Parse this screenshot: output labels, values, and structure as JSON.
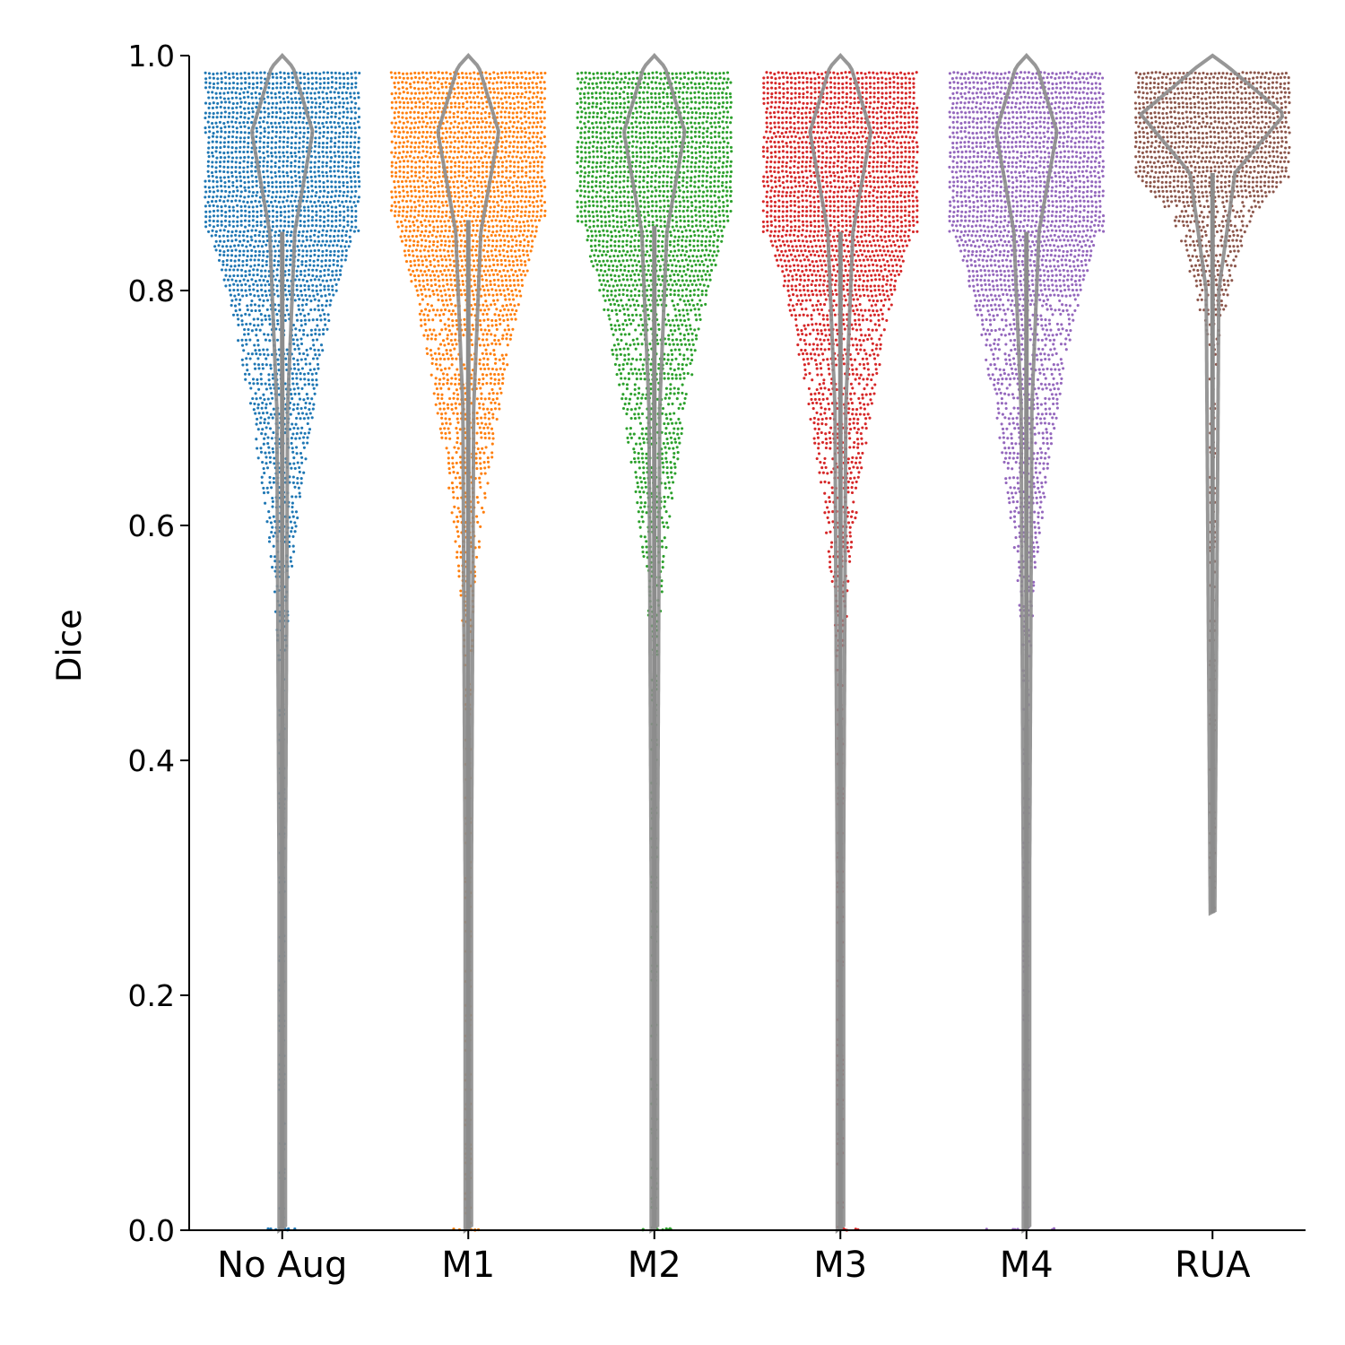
{
  "chart_data": {
    "type": "violin-swarm",
    "title": "",
    "xlabel": "",
    "ylabel": "Dice",
    "ylim": [
      0,
      1.0
    ],
    "yticks": [
      {
        "value": 0.0,
        "label": "0.0"
      },
      {
        "value": 0.2,
        "label": "0.2"
      },
      {
        "value": 0.4,
        "label": "0.4"
      },
      {
        "value": 0.6,
        "label": "0.6"
      },
      {
        "value": 0.8,
        "label": "0.8"
      },
      {
        "value": 1.0,
        "label": "1.0"
      }
    ],
    "grid": false,
    "series": [
      {
        "name": "No Aug",
        "color": "#1f77b4",
        "median": 0.93,
        "q1": 0.85,
        "q3": 0.97,
        "min": 0.0,
        "max": 0.985,
        "mode": 0.935
      },
      {
        "name": "M1",
        "color": "#ff7f0e",
        "median": 0.93,
        "q1": 0.86,
        "q3": 0.975,
        "min": 0.0,
        "max": 0.985,
        "mode": 0.945
      },
      {
        "name": "M2",
        "color": "#2ca02c",
        "median": 0.925,
        "q1": 0.855,
        "q3": 0.975,
        "min": 0.0,
        "max": 0.985,
        "mode": 0.94
      },
      {
        "name": "M3",
        "color": "#d62728",
        "median": 0.92,
        "q1": 0.85,
        "q3": 0.975,
        "min": 0.0,
        "max": 0.985,
        "mode": 0.945
      },
      {
        "name": "M4",
        "color": "#9467bd",
        "median": 0.92,
        "q1": 0.85,
        "q3": 0.975,
        "min": 0.0,
        "max": 0.985,
        "mode": 0.945
      },
      {
        "name": "RUA",
        "color": "#8c564b",
        "median": 0.95,
        "q1": 0.9,
        "q3": 0.98,
        "min": 0.27,
        "max": 0.985,
        "mode": 0.96
      }
    ]
  }
}
